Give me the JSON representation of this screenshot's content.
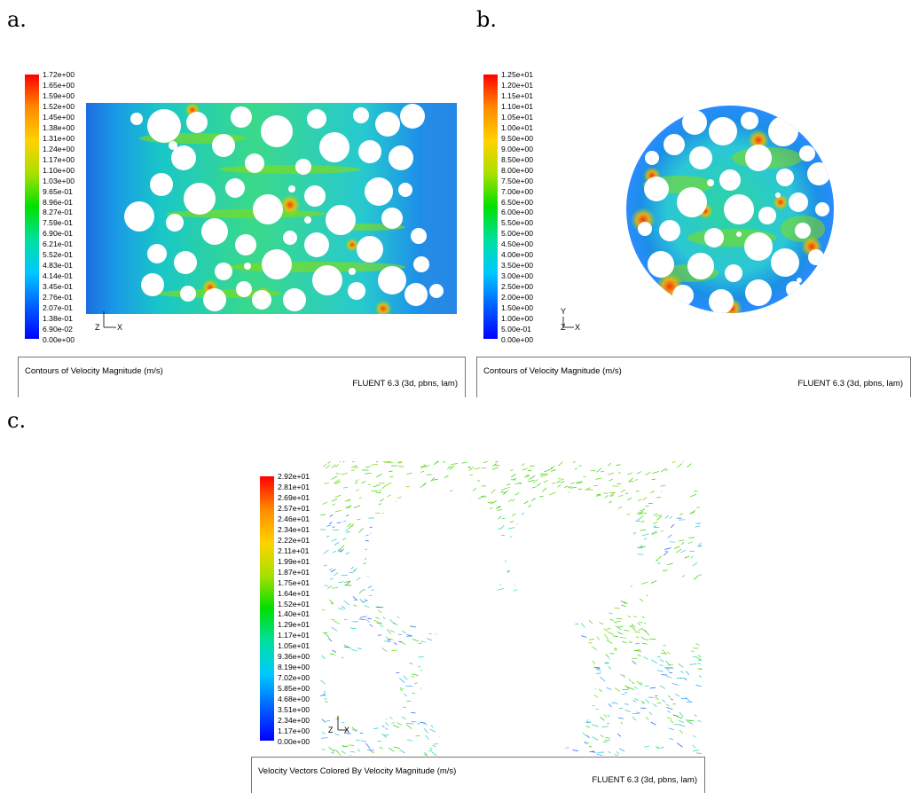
{
  "panels": {
    "a": {
      "letter": "a.",
      "caption": "Contours of Velocity Magnitude (m/s)",
      "software": "FLUENT 6.3 (3d, pbns, lam)",
      "ticks": [
        "1.72e+00",
        "1.65e+00",
        "1.59e+00",
        "1.52e+00",
        "1.45e+00",
        "1.38e+00",
        "1.31e+00",
        "1.24e+00",
        "1.17e+00",
        "1.10e+00",
        "1.03e+00",
        "9.65e-01",
        "8.96e-01",
        "8.27e-01",
        "7.59e-01",
        "6.90e-01",
        "6.21e-01",
        "5.52e-01",
        "4.83e-01",
        "4.14e-01",
        "3.45e-01",
        "2.76e-01",
        "2.07e-01",
        "1.38e-01",
        "6.90e-02",
        "0.00e+00"
      ],
      "axis_labels": {
        "y": "Y",
        "z": "Z",
        "x": "X"
      }
    },
    "b": {
      "letter": "b.",
      "caption": "Contours of Velocity Magnitude (m/s)",
      "software": "FLUENT 6.3 (3d, pbns, lam)",
      "ticks": [
        "1.25e+01",
        "1.20e+01",
        "1.15e+01",
        "1.10e+01",
        "1.05e+01",
        "1.00e+01",
        "9.50e+00",
        "9.00e+00",
        "8.50e+00",
        "8.00e+00",
        "7.50e+00",
        "7.00e+00",
        "6.50e+00",
        "6.00e+00",
        "5.50e+00",
        "5.00e+00",
        "4.50e+00",
        "4.00e+00",
        "3.50e+00",
        "3.00e+00",
        "2.50e+00",
        "2.00e+00",
        "1.50e+00",
        "1.00e+00",
        "5.00e-01",
        "0.00e+00"
      ],
      "axis_labels": {
        "y": "Y",
        "z": "Z",
        "x": "X"
      }
    },
    "c": {
      "letter": "c.",
      "caption": "Velocity Vectors Colored By Velocity Magnitude (m/s)",
      "software": "FLUENT 6.3 (3d, pbns, lam)",
      "ticks": [
        "2.92e+01",
        "2.81e+01",
        "2.69e+01",
        "2.57e+01",
        "2.46e+01",
        "2.34e+01",
        "2.22e+01",
        "2.11e+01",
        "1.99e+01",
        "1.87e+01",
        "1.75e+01",
        "1.64e+01",
        "1.52e+01",
        "1.40e+01",
        "1.29e+01",
        "1.17e+01",
        "1.05e+01",
        "9.36e+00",
        "8.19e+00",
        "7.02e+00",
        "5.85e+00",
        "4.68e+00",
        "3.51e+00",
        "2.34e+00",
        "1.17e+00",
        "0.00e+00"
      ],
      "axis_labels": {
        "y": "Y",
        "z": "Z",
        "x": "X"
      }
    }
  }
}
